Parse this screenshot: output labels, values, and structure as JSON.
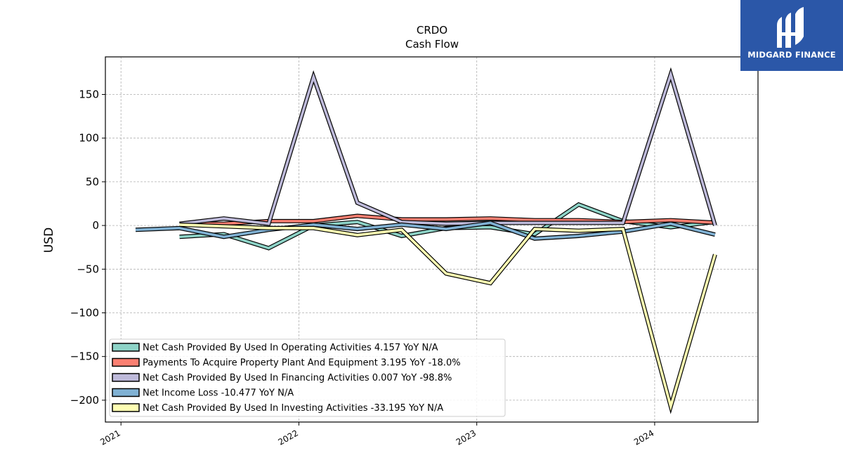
{
  "chart_data": {
    "type": "line",
    "title": "CRDO",
    "subtitle": "Cash Flow",
    "xlabel": "",
    "ylabel": "USD",
    "ylim": [
      -225,
      193
    ],
    "y_ticks": [
      -200,
      -150,
      -100,
      -50,
      0,
      50,
      100,
      150
    ],
    "y_tick_labels": [
      "−200",
      "−150",
      "−100",
      "−50",
      "0",
      "50",
      "100",
      "150"
    ],
    "x_ticks": [
      "2021-01-01",
      "2022-01-01",
      "2023-01-01",
      "2024-01-01"
    ],
    "x_tick_labels": [
      "2021",
      "2022",
      "2023",
      "2024"
    ],
    "xlim": [
      "2020-11-30",
      "2024-07-31"
    ],
    "grid": true,
    "legend_position": "lower-left",
    "series": [
      {
        "name": "Net Cash Provided By Used In Operating Activities  4.157 YoY N/A",
        "color": "#8dd3c7",
        "x": [
          "2021-05-01",
          "2021-07-31",
          "2021-10-31",
          "2022-01-31",
          "2022-05-01",
          "2022-07-31",
          "2022-10-30",
          "2023-01-29",
          "2023-04-30",
          "2023-07-29",
          "2023-10-28",
          "2024-02-03",
          "2024-05-04"
        ],
        "values": [
          -13,
          -10,
          -26,
          0,
          4,
          -12,
          -3,
          -2,
          -10,
          24,
          5,
          -2,
          4.157
        ]
      },
      {
        "name": "Payments To Acquire Property Plant And Equipment  3.195 YoY -18.0%",
        "color": "#fb8072",
        "x": [
          "2021-05-01",
          "2021-07-31",
          "2021-10-31",
          "2022-01-31",
          "2022-05-01",
          "2022-07-31",
          "2022-10-30",
          "2023-01-29",
          "2023-04-30",
          "2023-07-29",
          "2023-10-28",
          "2024-02-03",
          "2024-05-04"
        ],
        "values": [
          2,
          2,
          5,
          5,
          11,
          7,
          7,
          8,
          6,
          6,
          4,
          6,
          3.195
        ]
      },
      {
        "name": "Net Cash Provided By Used In Financing Activities  0.007 YoY -98.8%",
        "color": "#bebada",
        "x": [
          "2021-05-01",
          "2021-07-31",
          "2021-10-31",
          "2022-01-31",
          "2022-05-01",
          "2022-07-31",
          "2022-10-30",
          "2023-01-29",
          "2023-04-30",
          "2023-07-29",
          "2023-10-28",
          "2024-02-03",
          "2024-05-04"
        ],
        "values": [
          2,
          8,
          2,
          170,
          26,
          4,
          2,
          3,
          3,
          3,
          3,
          173,
          0.007
        ]
      },
      {
        "name": "Net Income Loss  -10.477 YoY N/A",
        "color": "#80b1d3",
        "x": [
          "2021-01-31",
          "2021-05-01",
          "2021-07-31",
          "2021-10-31",
          "2022-01-31",
          "2022-05-01",
          "2022-07-31",
          "2022-10-30",
          "2023-01-29",
          "2023-04-30",
          "2023-07-29",
          "2023-10-28",
          "2024-02-03",
          "2024-05-04"
        ],
        "values": [
          -5,
          -3,
          -13,
          -5,
          1,
          -4,
          1,
          -4,
          3,
          -15,
          -12,
          -7,
          2,
          -10.477
        ]
      },
      {
        "name": "Net Cash Provided By Used In Investing Activities  -33.195 YoY N/A",
        "color": "#ffffb3",
        "x": [
          "2021-05-01",
          "2021-07-31",
          "2021-10-31",
          "2022-01-31",
          "2022-05-01",
          "2022-07-31",
          "2022-10-30",
          "2023-01-29",
          "2023-04-30",
          "2023-07-29",
          "2023-10-28",
          "2024-02-03",
          "2024-05-04"
        ],
        "values": [
          1,
          -1,
          -3,
          -3,
          -11,
          -5,
          -55,
          -66,
          -4,
          -6,
          -4,
          -207,
          -33.195
        ]
      }
    ]
  },
  "logo": {
    "text": "MIDGARD FINANCE",
    "background": "#2b57a8"
  }
}
